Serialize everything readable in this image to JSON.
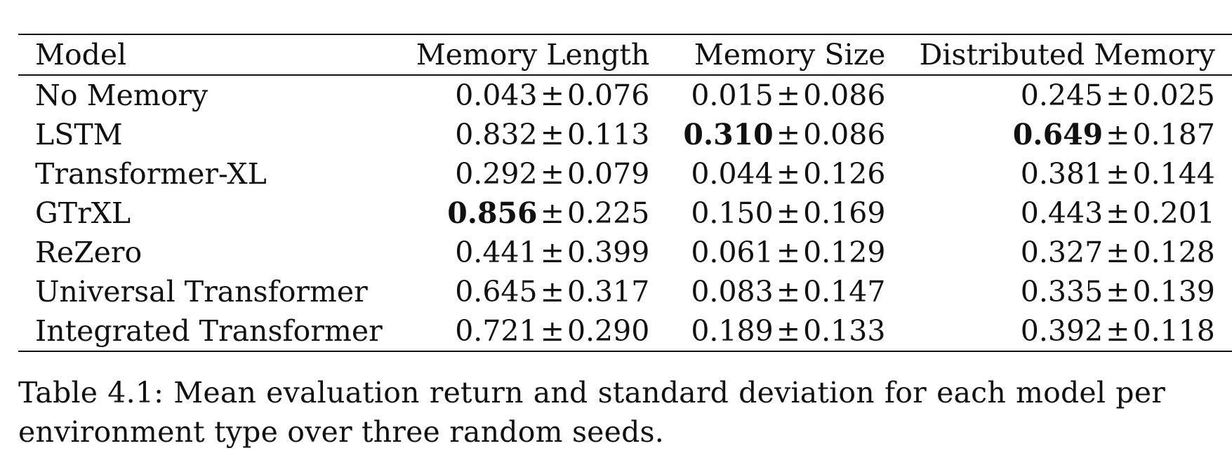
{
  "table": {
    "headers": [
      "Model",
      "Memory Length",
      "Memory Size",
      "Distributed Memory"
    ],
    "rows": [
      {
        "model": "No Memory",
        "cells": [
          {
            "mean": "0.043",
            "pm": "±",
            "std": "0.076",
            "best": false
          },
          {
            "mean": "0.015",
            "pm": "±",
            "std": "0.086",
            "best": false
          },
          {
            "mean": "0.245",
            "pm": "±",
            "std": "0.025",
            "best": false
          }
        ]
      },
      {
        "model": "LSTM",
        "cells": [
          {
            "mean": "0.832",
            "pm": "±",
            "std": "0.113",
            "best": false
          },
          {
            "mean": "0.310",
            "pm": "±",
            "std": "0.086",
            "best": true
          },
          {
            "mean": "0.649",
            "pm": "±",
            "std": "0.187",
            "best": true
          }
        ]
      },
      {
        "model": "Transformer-XL",
        "cells": [
          {
            "mean": "0.292",
            "pm": "±",
            "std": "0.079",
            "best": false
          },
          {
            "mean": "0.044",
            "pm": "±",
            "std": "0.126",
            "best": false
          },
          {
            "mean": "0.381",
            "pm": "±",
            "std": "0.144",
            "best": false
          }
        ]
      },
      {
        "model": "GTrXL",
        "cells": [
          {
            "mean": "0.856",
            "pm": "±",
            "std": "0.225",
            "best": true
          },
          {
            "mean": "0.150",
            "pm": "±",
            "std": "0.169",
            "best": false
          },
          {
            "mean": "0.443",
            "pm": "±",
            "std": "0.201",
            "best": false
          }
        ]
      },
      {
        "model": "ReZero",
        "cells": [
          {
            "mean": "0.441",
            "pm": "±",
            "std": "0.399",
            "best": false
          },
          {
            "mean": "0.061",
            "pm": "±",
            "std": "0.129",
            "best": false
          },
          {
            "mean": "0.327",
            "pm": "±",
            "std": "0.128",
            "best": false
          }
        ]
      },
      {
        "model": "Universal Transformer",
        "cells": [
          {
            "mean": "0.645",
            "pm": "±",
            "std": "0.317",
            "best": false
          },
          {
            "mean": "0.083",
            "pm": "±",
            "std": "0.147",
            "best": false
          },
          {
            "mean": "0.335",
            "pm": "±",
            "std": "0.139",
            "best": false
          }
        ]
      },
      {
        "model": "Integrated Transformer",
        "cells": [
          {
            "mean": "0.721",
            "pm": "±",
            "std": "0.290",
            "best": false
          },
          {
            "mean": "0.189",
            "pm": "±",
            "std": "0.133",
            "best": false
          },
          {
            "mean": "0.392",
            "pm": "±",
            "std": "0.118",
            "best": false
          }
        ]
      }
    ]
  },
  "caption": "Table 4.1: Mean evaluation return and standard deviation for each model per environment type over three random seeds."
}
